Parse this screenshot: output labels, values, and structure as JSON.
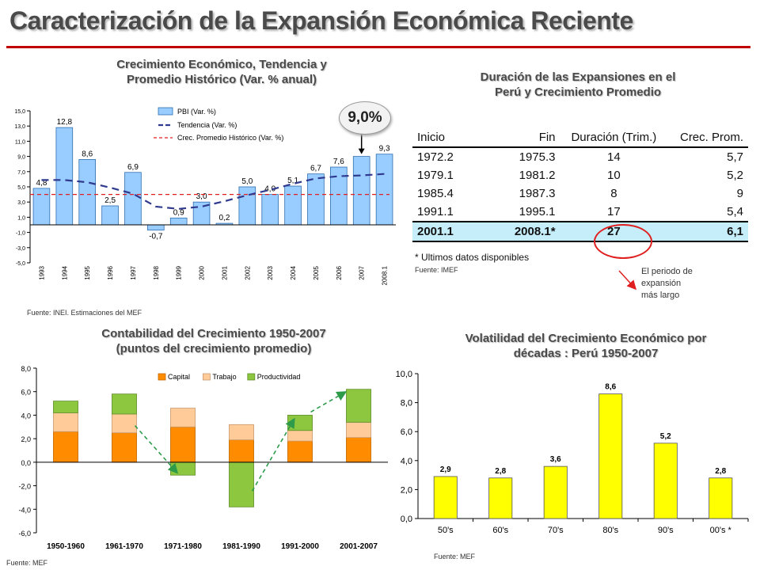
{
  "main_title": "Caracterización de la Expansión Económica Reciente",
  "panels": {
    "top_left": {
      "title_line1": "Crecimiento Económico, Tendencia y",
      "title_line2": "Promedio Histórico (Var. % anual)",
      "source": "Fuente: INEI. Estimaciones del MEF",
      "badge": "9,0%"
    },
    "top_right": {
      "title_line1": "Duración de las Expansiones en el",
      "title_line2": "Perú y Crecimiento Promedio",
      "source": "Fuente: IMEF",
      "footnote": "* Ultimos datos disponibles",
      "annotation_line1": "El periodo de",
      "annotation_line2": "expansión",
      "annotation_line3": "más largo"
    },
    "bottom_left": {
      "title_line1": "Contabilidad del Crecimiento 1950-2007",
      "title_line2": "(puntos del crecimiento promedio)",
      "source": "Fuente: MEF"
    },
    "bottom_right": {
      "title_line1": "Volatilidad del Crecimiento Económico por",
      "title_line2": "décadas : Perú 1950-2007",
      "source": "Fuente: MEF"
    }
  },
  "table": {
    "headers": [
      "Inicio",
      "Fin",
      "Duración (Trim.)",
      "Crec. Prom."
    ],
    "rows": [
      [
        "1972.2",
        "1975.3",
        "14",
        "5,7"
      ],
      [
        "1979.1",
        "1981.2",
        "10",
        "5,2"
      ],
      [
        "1985.4",
        "1987.3",
        "8",
        "9"
      ],
      [
        "1991.1",
        "1995.1",
        "17",
        "5,4"
      ],
      [
        "2001.1",
        "2008.1*",
        "27",
        "6,1"
      ]
    ]
  },
  "colors": {
    "title_rule": "#c00000",
    "pbi_bar": "#99ccff",
    "trend_line": "#2f3a8f",
    "avg_line": "#e02020",
    "capital": "#ff8c00",
    "trabajo": "#ffcc99",
    "productividad": "#8dc63f",
    "volatility_bar": "#ffff00",
    "highlight_row": "#c6eefa",
    "arrow_green": "#2e9b4a"
  },
  "chart_data": [
    {
      "type": "bar",
      "categories": [
        "1993",
        "1994",
        "1995",
        "1996",
        "1997",
        "1998",
        "1999",
        "2000",
        "2001",
        "2002",
        "2003",
        "2004",
        "2005",
        "2006",
        "2007",
        "2008.1"
      ],
      "series": [
        {
          "name": "PBI (Var. %)",
          "values": [
            4.8,
            12.8,
            8.6,
            2.5,
            6.9,
            -0.7,
            0.9,
            3.0,
            0.2,
            5.0,
            4.0,
            5.1,
            6.7,
            7.6,
            9.0,
            9.3
          ]
        },
        {
          "name": "Tendencia (Var. %)",
          "values": [
            5.9,
            5.9,
            5.6,
            4.9,
            4.1,
            2.4,
            2.1,
            2.4,
            3.1,
            3.9,
            4.6,
            5.4,
            6.1,
            6.4,
            6.5,
            6.7
          ]
        },
        {
          "name": "Crec. Promedio Histórico (Var. %)",
          "values": [
            4.0,
            4.0,
            4.0,
            4.0,
            4.0,
            4.0,
            4.0,
            4.0,
            4.0,
            4.0,
            4.0,
            4.0,
            4.0,
            4.0,
            4.0,
            4.0
          ]
        }
      ],
      "data_labels": [
        "4,8",
        "12,8",
        "8,6",
        "2,5",
        "6,9",
        "-0,7",
        "0,9",
        "3,0",
        "0,2",
        "5,0",
        "4,0",
        "5,1",
        "6,7",
        "7,6",
        "",
        "9,3"
      ],
      "y_ticks": [
        "15,0",
        "13,0",
        "11,0",
        "9,0",
        "7,0",
        "5,0",
        "3,0",
        "1,0",
        "-1,0",
        "-3,0",
        "-5,0"
      ],
      "ylim": [
        -5,
        15
      ]
    },
    {
      "type": "bar",
      "stacked": true,
      "categories": [
        "1950-1960",
        "1961-1970",
        "1971-1980",
        "1981-1990",
        "1991-2000",
        "2001-2007"
      ],
      "series": [
        {
          "name": "Capital",
          "values": [
            2.6,
            2.5,
            3.0,
            1.9,
            1.8,
            2.1
          ]
        },
        {
          "name": "Trabajo",
          "values": [
            1.6,
            1.6,
            1.6,
            1.3,
            0.9,
            1.3
          ]
        },
        {
          "name": "Productividad",
          "values": [
            1.0,
            1.7,
            -1.1,
            -3.8,
            1.3,
            2.8
          ]
        }
      ],
      "y_ticks": [
        "8,0",
        "6,0",
        "4,0",
        "2,0",
        "0,0",
        "-2,0",
        "-4,0",
        "-6,0"
      ],
      "ylim": [
        -6,
        8
      ],
      "legend": "top"
    },
    {
      "type": "bar",
      "categories": [
        "50's",
        "60's",
        "70's",
        "80's",
        "90's",
        "00's *"
      ],
      "values": [
        2.9,
        2.8,
        3.6,
        8.6,
        5.2,
        2.8
      ],
      "data_labels": [
        "2,9",
        "2,8",
        "3,6",
        "8,6",
        "5,2",
        "2,8"
      ],
      "y_ticks": [
        "10,0",
        "8,0",
        "6,0",
        "4,0",
        "2,0",
        "0,0"
      ],
      "ylim": [
        0,
        10
      ]
    }
  ]
}
